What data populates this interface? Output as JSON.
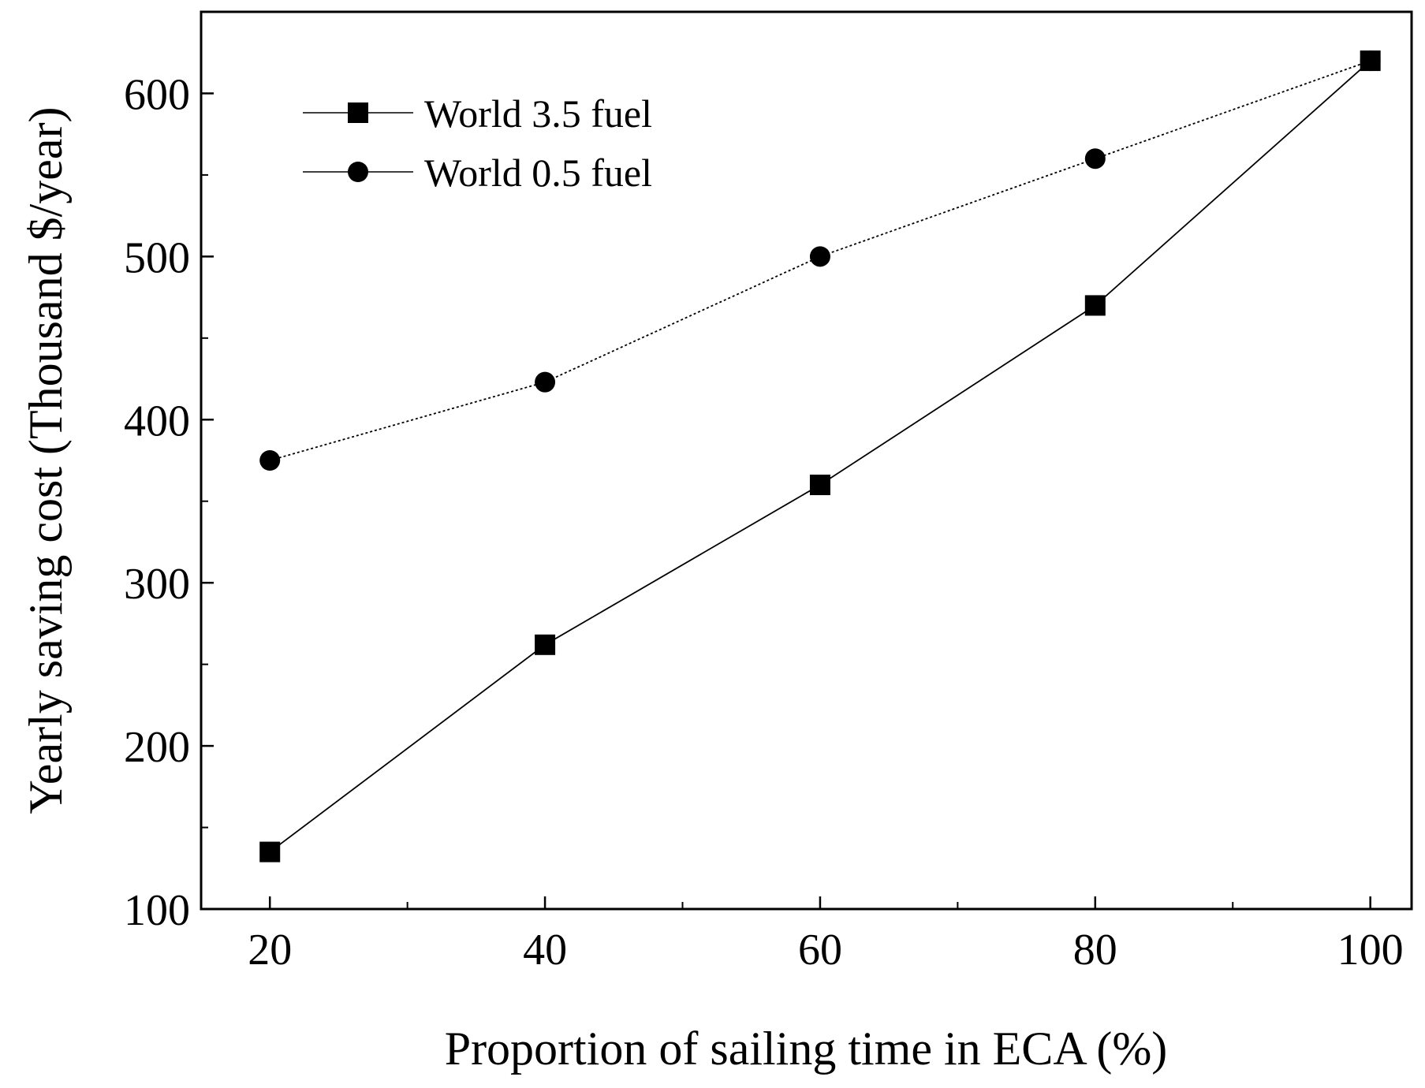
{
  "chart_data": {
    "type": "line",
    "title": "",
    "xlabel": "Proportion of sailing time in ECA (%)",
    "ylabel": "Yearly saving cost (Thousand $/year)",
    "xlim": [
      15,
      103
    ],
    "ylim": [
      100,
      650
    ],
    "x_ticks": [
      20,
      40,
      60,
      80,
      100
    ],
    "x_minor_ticks": [
      30,
      50,
      70,
      90
    ],
    "y_ticks": [
      100,
      200,
      300,
      400,
      500,
      600
    ],
    "y_minor_ticks": [
      150,
      250,
      350,
      450,
      550
    ],
    "x_tick_labels": [
      "20",
      "40",
      "60",
      "80",
      "100"
    ],
    "y_tick_labels": [
      "100",
      "200",
      "300",
      "400",
      "500",
      "600"
    ],
    "grid": false,
    "legend_position": "top-left",
    "series": [
      {
        "name": "World 3.5 fuel",
        "marker": "square",
        "line_style": "solid",
        "x": [
          20,
          40,
          60,
          80,
          100
        ],
        "values": [
          135,
          262,
          360,
          470,
          620
        ]
      },
      {
        "name": "World 0.5 fuel",
        "marker": "circle",
        "line_style": "dotted",
        "x": [
          20,
          40,
          60,
          80,
          100
        ],
        "values": [
          375,
          423,
          500,
          560,
          620
        ]
      }
    ]
  }
}
